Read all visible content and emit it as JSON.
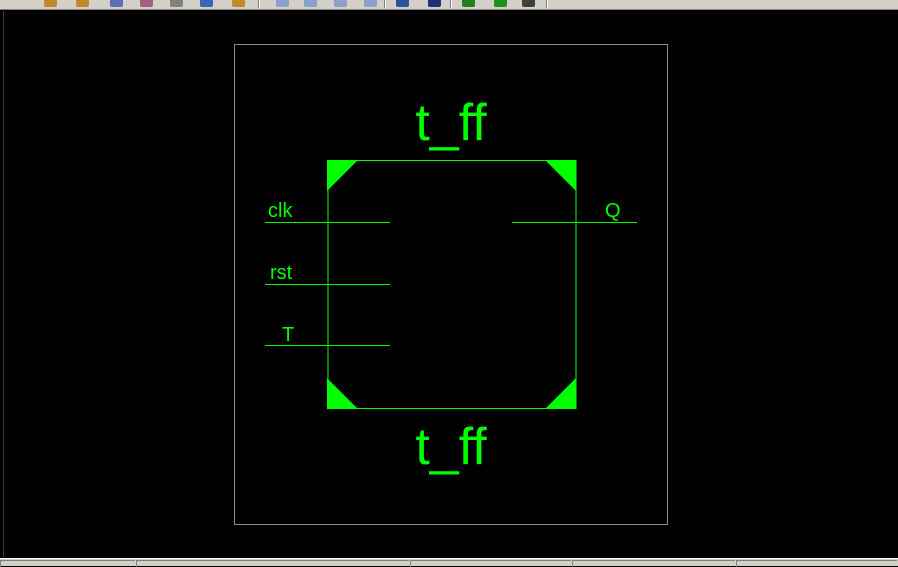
{
  "toolbar": {
    "buttons": [
      {
        "icon": "pencil-icon",
        "color": "#c08a2a"
      },
      {
        "icon": "edit-icon",
        "color": "#c08a2a"
      },
      {
        "icon": "copy-icon",
        "color": "#5b6fb5"
      },
      {
        "icon": "paste-icon",
        "color": "#a06080"
      },
      {
        "icon": "undo-icon",
        "color": "#808080"
      },
      {
        "icon": "save-icon",
        "color": "#3a64b8"
      },
      {
        "icon": "redo-icon",
        "color": "#c08a2a"
      },
      {
        "icon": "page-icon",
        "color": "#8aa0c8"
      },
      {
        "icon": "page-icon",
        "color": "#8aa0c8"
      },
      {
        "icon": "page-icon",
        "color": "#8aa0c8"
      },
      {
        "icon": "page-icon",
        "color": "#8aa0c8"
      },
      {
        "icon": "arrow-icon",
        "color": "#3050a0"
      },
      {
        "icon": "binoculars-icon",
        "color": "#203070"
      },
      {
        "icon": "play-icon",
        "color": "#208020"
      },
      {
        "icon": "run-icon",
        "color": "#209020"
      },
      {
        "icon": "tool-icon",
        "color": "#404040"
      }
    ]
  },
  "symbol": {
    "name_top": "t_ff",
    "name_bottom": "t_ff",
    "inputs": [
      "clk",
      "rst",
      "T"
    ],
    "outputs": [
      "Q"
    ]
  },
  "colors": {
    "background": "#000000",
    "symbol": "#00ff00",
    "sheet_border": "#8c8c8c",
    "chrome": "#d4d0c8"
  }
}
